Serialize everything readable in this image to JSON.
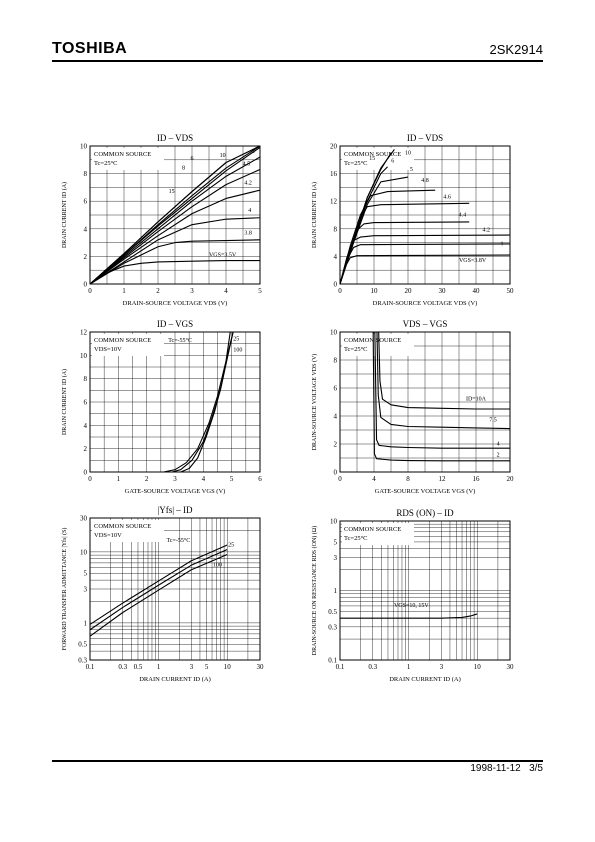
{
  "header": {
    "brand": "TOSHIBA",
    "part_number": "2SK2914"
  },
  "footer": {
    "date": "1998-11-12",
    "page": "3/5"
  },
  "chart_data": [
    {
      "id": "c1",
      "type": "line",
      "title": "ID – VDS",
      "xlabel": "DRAIN-SOURCE VOLTAGE  VDS  (V)",
      "ylabel": "DRAIN CURRENT  ID  (A)",
      "xlim": [
        0,
        5
      ],
      "ylim": [
        0,
        10
      ],
      "xticks": [
        0,
        1,
        2,
        3,
        4,
        5
      ],
      "yticks": [
        0,
        2,
        4,
        6,
        8,
        10
      ],
      "annotations": [
        "COMMON SOURCE",
        "Tc=25°C"
      ],
      "series": [
        {
          "name": "10",
          "x": [
            0,
            1,
            2,
            3,
            4,
            5
          ],
          "y": [
            0,
            2.2,
            4.5,
            6.7,
            8.8,
            10
          ]
        },
        {
          "name": "15",
          "x": [
            0,
            1,
            2,
            3,
            4,
            5
          ],
          "y": [
            0,
            2.2,
            4.5,
            6.7,
            8.8,
            10
          ]
        },
        {
          "name": "8",
          "x": [
            0,
            1,
            2,
            3,
            4,
            5
          ],
          "y": [
            0,
            2.1,
            4.3,
            6.4,
            8.4,
            10
          ]
        },
        {
          "name": "6",
          "x": [
            0,
            1,
            2,
            3,
            4,
            5
          ],
          "y": [
            0,
            2.1,
            4.2,
            6.2,
            8.2,
            9.9
          ]
        },
        {
          "name": "5",
          "x": [
            0,
            1,
            2,
            3,
            4,
            5
          ],
          "y": [
            0,
            2.0,
            4.0,
            6.0,
            7.8,
            9.2
          ]
        },
        {
          "name": "4.5",
          "x": [
            0,
            1,
            2,
            3,
            4,
            5
          ],
          "y": [
            0,
            1.9,
            3.8,
            5.6,
            7.2,
            8.3
          ]
        },
        {
          "name": "4.2",
          "x": [
            0,
            1,
            2,
            3,
            4,
            5
          ],
          "y": [
            0,
            1.8,
            3.5,
            5.1,
            6.2,
            6.8
          ]
        },
        {
          "name": "4",
          "x": [
            0,
            1,
            2,
            3,
            4,
            5
          ],
          "y": [
            0,
            1.6,
            3.2,
            4.3,
            4.7,
            4.8
          ]
        },
        {
          "name": "3.8",
          "x": [
            0,
            1,
            2,
            2.5,
            3,
            4,
            5
          ],
          "y": [
            0,
            1.5,
            2.7,
            3.0,
            3.1,
            3.15,
            3.2
          ]
        },
        {
          "name": "VGS=3.5V",
          "x": [
            0,
            0.5,
            1,
            1.5,
            2,
            3,
            4,
            5
          ],
          "y": [
            0,
            0.8,
            1.3,
            1.5,
            1.6,
            1.65,
            1.7,
            1.7
          ]
        }
      ]
    },
    {
      "id": "c2",
      "type": "line",
      "title": "ID – VDS",
      "xlabel": "DRAIN-SOURCE VOLTAGE  VDS  (V)",
      "ylabel": "DRAIN CURRENT  ID  (A)",
      "xlim": [
        0,
        50
      ],
      "ylim": [
        0,
        20
      ],
      "xticks": [
        0,
        10,
        20,
        30,
        40,
        50
      ],
      "yticks": [
        0,
        4,
        8,
        12,
        16,
        20
      ],
      "annotations": [
        "COMMON SOURCE",
        "Tc=25°C"
      ],
      "series": [
        {
          "name": "10",
          "x": [
            0,
            4,
            8,
            12,
            16
          ],
          "y": [
            0,
            6.5,
            12.5,
            16.8,
            19.5
          ]
        },
        {
          "name": "15",
          "x": [
            0,
            4,
            8,
            12,
            15
          ],
          "y": [
            0,
            6.5,
            12.5,
            16.6,
            19
          ]
        },
        {
          "name": "6",
          "x": [
            0,
            4,
            8,
            12,
            14
          ],
          "y": [
            0,
            6.3,
            12,
            16,
            17
          ]
        },
        {
          "name": "5",
          "x": [
            0,
            4,
            8,
            12,
            20
          ],
          "y": [
            0,
            6,
            11.5,
            14.8,
            15.5
          ]
        },
        {
          "name": "4.8",
          "x": [
            0,
            3,
            6,
            9,
            14,
            28
          ],
          "y": [
            0,
            5.5,
            10,
            12.8,
            13.4,
            13.6
          ]
        },
        {
          "name": "4.6",
          "x": [
            0,
            3,
            6,
            8,
            12,
            38
          ],
          "y": [
            0,
            5,
            9.5,
            11.2,
            11.5,
            11.7
          ]
        },
        {
          "name": "4.4",
          "x": [
            0,
            3,
            5,
            7,
            10,
            38
          ],
          "y": [
            0,
            4.5,
            7.8,
            8.7,
            8.9,
            9.0
          ]
        },
        {
          "name": "4.2",
          "x": [
            0,
            2,
            4,
            6,
            10,
            50
          ],
          "y": [
            0,
            3.8,
            6.3,
            6.8,
            7.0,
            7.1
          ]
        },
        {
          "name": "4",
          "x": [
            0,
            2,
            4,
            6,
            50
          ],
          "y": [
            0,
            3.5,
            5.3,
            5.7,
            5.8
          ]
        },
        {
          "name": "VGS=3.8V",
          "x": [
            0,
            1.5,
            3,
            5,
            50
          ],
          "y": [
            0,
            2.5,
            3.8,
            4.1,
            4.2
          ]
        }
      ]
    },
    {
      "id": "c3",
      "type": "line",
      "title": "ID – VGS",
      "xlabel": "GATE-SOURCE VOLTAGE  VGS  (V)",
      "ylabel": "DRAIN CURRENT  ID  (A)",
      "xlim": [
        0,
        6
      ],
      "ylim": [
        0,
        12
      ],
      "xticks": [
        0,
        1,
        2,
        3,
        4,
        5,
        6
      ],
      "yticks": [
        0,
        2,
        4,
        6,
        8,
        10,
        12
      ],
      "annotations": [
        "COMMON SOURCE",
        "VDS=10V"
      ],
      "series": [
        {
          "name": "Tc=-55°C",
          "x": [
            2.6,
            3.0,
            3.4,
            3.8,
            4.2,
            4.5,
            4.8,
            4.95
          ],
          "y": [
            0,
            0.2,
            0.8,
            2.0,
            4.2,
            6.5,
            9.5,
            12
          ]
        },
        {
          "name": "25",
          "x": [
            2.9,
            3.2,
            3.6,
            4.0,
            4.3,
            4.6,
            4.85,
            5.05
          ],
          "y": [
            0,
            0.2,
            1.0,
            2.6,
            4.6,
            7.0,
            9.8,
            12
          ]
        },
        {
          "name": "100",
          "x": [
            3.2,
            3.5,
            3.8,
            4.1,
            4.4,
            4.65,
            4.85,
            5.05
          ],
          "y": [
            0,
            0.3,
            1.2,
            3.0,
            5.2,
            7.6,
            10.0,
            12
          ]
        }
      ]
    },
    {
      "id": "c4",
      "type": "line",
      "title": "VDS – VGS",
      "xlabel": "GATE-SOURCE VOLTAGE  VGS  (V)",
      "ylabel": "DRAIN-SOURCE VOLTAGE  VDS  (V)",
      "xlim": [
        0,
        20
      ],
      "ylim": [
        0,
        10
      ],
      "xticks": [
        0,
        4,
        8,
        12,
        16,
        20
      ],
      "yticks": [
        0,
        2,
        4,
        6,
        8,
        10
      ],
      "annotations": [
        "COMMON SOURCE",
        "Tc=25°C"
      ],
      "series": [
        {
          "name": "ID=10A",
          "x": [
            4.55,
            4.7,
            5.0,
            6,
            8,
            12,
            16,
            20
          ],
          "y": [
            10,
            6.5,
            5.2,
            4.8,
            4.6,
            4.55,
            4.5,
            4.5
          ]
        },
        {
          "name": "7.5",
          "x": [
            4.35,
            4.5,
            4.8,
            6,
            8,
            12,
            16,
            20
          ],
          "y": [
            10,
            5.5,
            3.9,
            3.4,
            3.25,
            3.2,
            3.15,
            3.1
          ]
        },
        {
          "name": "4",
          "x": [
            4.1,
            4.3,
            4.6,
            6,
            8,
            12,
            16,
            20
          ],
          "y": [
            10,
            2.3,
            1.9,
            1.8,
            1.75,
            1.7,
            1.7,
            1.7
          ]
        },
        {
          "name": "2",
          "x": [
            3.9,
            4.05,
            4.3,
            6,
            8,
            12,
            16,
            20
          ],
          "y": [
            10,
            1.3,
            0.95,
            0.85,
            0.82,
            0.8,
            0.8,
            0.8
          ]
        }
      ]
    },
    {
      "id": "c5",
      "type": "line",
      "title": "|Yfs| – ID",
      "xlabel": "DRAIN CURRENT  ID  (A)",
      "ylabel": "FORWARD TRANSFER ADMITTANCE  |Yfs|  (S)",
      "xscale": "log",
      "yscale": "log",
      "xlim": [
        0.1,
        30
      ],
      "ylim": [
        0.3,
        30
      ],
      "xticks": [
        0.1,
        0.3,
        0.5,
        1,
        3,
        5,
        10,
        30
      ],
      "xticklabels": [
        "0.1",
        "0.3",
        "0.5",
        "1",
        "3",
        "5",
        "10",
        "30"
      ],
      "yticks": [
        0.3,
        0.5,
        1,
        3,
        5,
        10,
        30
      ],
      "yticklabels": [
        "0.3",
        "0.5",
        "1",
        "3",
        "5",
        "10",
        "30"
      ],
      "annotations": [
        "COMMON SOURCE",
        "VDS=10V"
      ],
      "series": [
        {
          "name": "Tc=-55°C",
          "x": [
            0.1,
            0.3,
            1,
            3,
            10
          ],
          "y": [
            0.95,
            1.9,
            3.9,
            7.5,
            12.5
          ]
        },
        {
          "name": "25",
          "x": [
            0.1,
            0.3,
            1,
            3,
            10
          ],
          "y": [
            0.8,
            1.65,
            3.4,
            6.5,
            10.8
          ]
        },
        {
          "name": "100",
          "x": [
            0.1,
            0.3,
            1,
            3,
            10
          ],
          "y": [
            0.65,
            1.4,
            2.9,
            5.6,
            9.2
          ]
        }
      ]
    },
    {
      "id": "c6",
      "type": "line",
      "title": "RDS (ON) – ID",
      "xlabel": "DRAIN CURRENT  ID  (A)",
      "ylabel": "DRAIN-SOURCE ON RESISTANCE  RDS (ON)  (Ω)",
      "xscale": "log",
      "yscale": "log",
      "xlim": [
        0.1,
        30
      ],
      "ylim": [
        0.1,
        10
      ],
      "xticks": [
        0.1,
        0.3,
        1,
        3,
        10,
        30
      ],
      "xticklabels": [
        "0.1",
        "0.3",
        "1",
        "3",
        "10",
        "30"
      ],
      "yticks": [
        0.1,
        0.3,
        0.5,
        1,
        3,
        5,
        10
      ],
      "yticklabels": [
        "0.1",
        "0.3",
        "0.5",
        "1",
        "3",
        "5",
        "10"
      ],
      "annotations": [
        "COMMON SOURCE",
        "Tc=25°C"
      ],
      "series": [
        {
          "name": "VGS=10, 15V",
          "x": [
            0.1,
            1,
            3,
            6,
            8,
            10
          ],
          "y": [
            0.4,
            0.4,
            0.4,
            0.41,
            0.43,
            0.46
          ]
        }
      ]
    }
  ]
}
